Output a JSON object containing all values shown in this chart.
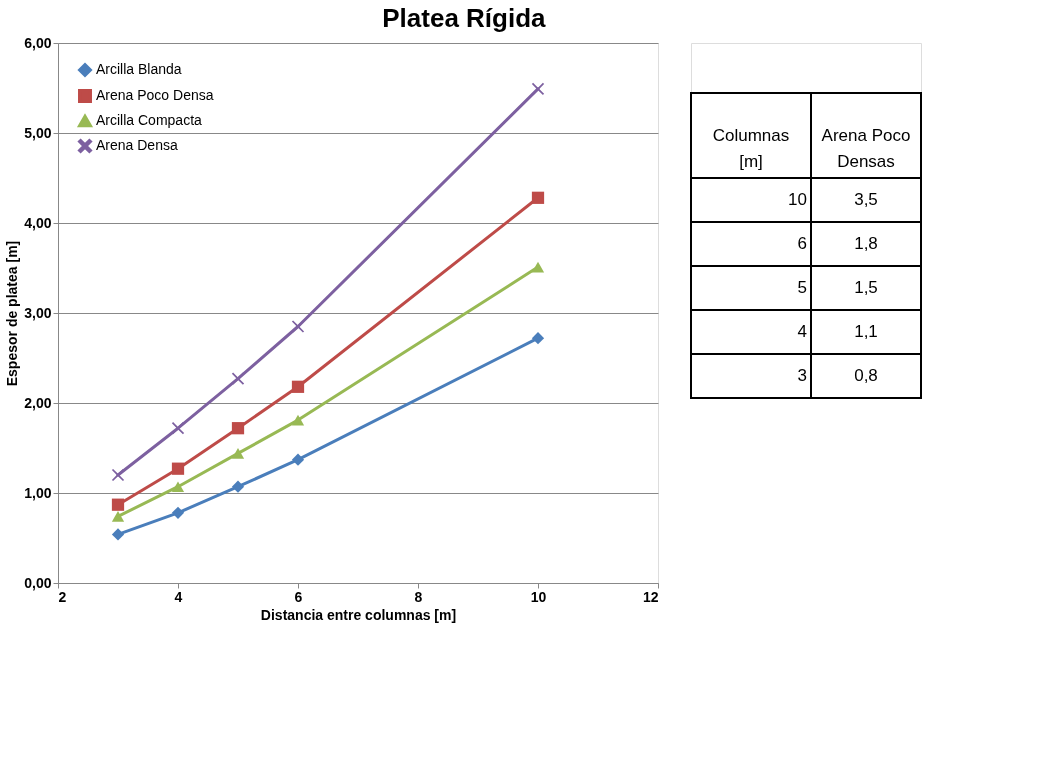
{
  "chart_data": {
    "type": "line",
    "title": "Platea Rígida",
    "xlabel": "Distancia entre columnas [m]",
    "ylabel": "Espesor de platea [m]",
    "x": [
      3,
      4,
      5,
      6,
      10
    ],
    "series": [
      {
        "name": "Arcilla Blanda",
        "color": "#4a7ebb",
        "marker": "diamond",
        "values": [
          0.54,
          0.78,
          1.07,
          1.37,
          2.72
        ]
      },
      {
        "name": "Arena Poco Densa",
        "color": "#be4b48",
        "marker": "square",
        "values": [
          0.87,
          1.27,
          1.72,
          2.18,
          4.28
        ]
      },
      {
        "name": "Arcilla Compacta",
        "color": "#98b954",
        "marker": "triangle",
        "values": [
          0.74,
          1.07,
          1.44,
          1.81,
          3.51
        ]
      },
      {
        "name": "Arena Densa",
        "color": "#7d60a0",
        "marker": "cross",
        "values": [
          1.2,
          1.72,
          2.27,
          2.85,
          5.49
        ]
      }
    ],
    "xlim": [
      2,
      12
    ],
    "xticks": [
      2,
      4,
      6,
      8,
      10,
      12
    ],
    "ylim": [
      0,
      6
    ],
    "yticks": [
      {
        "value": 0,
        "label": "0,00"
      },
      {
        "value": 1,
        "label": "1,00"
      },
      {
        "value": 2,
        "label": "2,00"
      },
      {
        "value": 3,
        "label": "3,00"
      },
      {
        "value": 4,
        "label": "4,00"
      },
      {
        "value": 5,
        "label": "5,00"
      },
      {
        "value": 6,
        "label": "6,00"
      }
    ],
    "grid": "y",
    "legend": "top left",
    "line_style": "solid",
    "annotations": [
      "Columnas\n[m]",
      "Arena Poco\nDensas",
      "10",
      "3,5",
      "6",
      "1,8",
      "5",
      "1,5",
      "4",
      "1,1",
      "3",
      "0,8"
    ]
  }
}
